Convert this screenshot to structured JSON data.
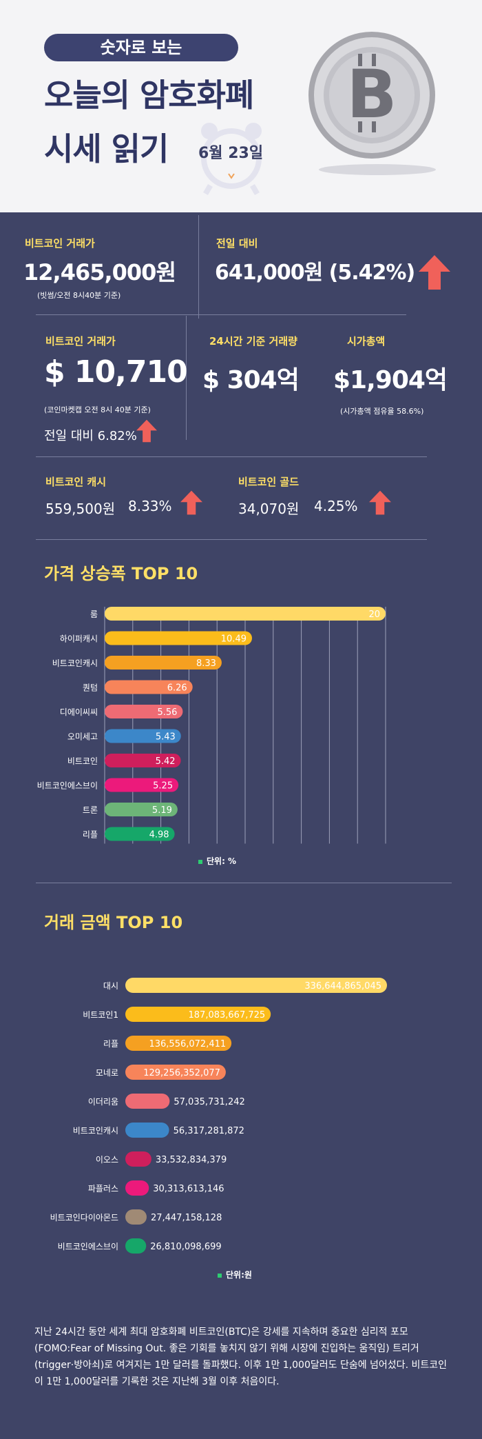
{
  "header": {
    "pill": "숫자로 보는",
    "title_line1": "오늘의 암호화폐",
    "title_line2": "시세 읽기",
    "date": "6월 23일"
  },
  "stats": {
    "btc_krw": {
      "label": "비트코인 거래가",
      "value": "12,465,000원",
      "note": "(빗썸/오전 8시40분 기준)"
    },
    "prev_day": {
      "label": "전일 대비",
      "value": "641,000원 (5.42%)"
    },
    "btc_usd": {
      "label": "비트코인 거래가",
      "value": "$ 10,710",
      "note": "(코인마켓캡 오전 8시 40분 기준)",
      "change": "전일 대비 6.82%"
    },
    "volume_24h": {
      "label": "24시간 기준 거래량",
      "value": "$ 304억"
    },
    "market_cap": {
      "label": "시가총액",
      "value": "$1,904억",
      "note": "(시가총액 점유율 58.6%)"
    },
    "bch": {
      "label": "비트코인 캐시",
      "value": "559,500원",
      "change": "8.33%"
    },
    "btg": {
      "label": "비트코인 골드",
      "value": "34,070원",
      "change": "4.25%"
    },
    "arrow_color": "#f0615a"
  },
  "chart_data": [
    {
      "type": "bar",
      "title": "가격 상승폭 TOP 10",
      "unit_label": "단위: %",
      "categories": [
        "룸",
        "하이퍼캐시",
        "비트코인캐시",
        "퀀텀",
        "디에이씨씨",
        "오미세고",
        "비트코인",
        "비트코인에스브이",
        "트론",
        "리플"
      ],
      "values": [
        20,
        10.49,
        8.33,
        6.26,
        5.56,
        5.43,
        5.42,
        5.25,
        5.19,
        4.98
      ],
      "value_labels": [
        "20",
        "10.49",
        "8.33",
        "6.26",
        "5.56",
        "5.43",
        "5.42",
        "5.25",
        "5.19",
        "4.98"
      ],
      "colors": [
        "#ffd966",
        "#fbbc1b",
        "#f5a021",
        "#f7845a",
        "#ee6b74",
        "#3c87c9",
        "#cf1f5c",
        "#ec1a7b",
        "#6db578",
        "#16a769"
      ],
      "xlim": [
        0,
        20
      ],
      "grid": true
    },
    {
      "type": "bar",
      "title": "거래 금액 TOP 10",
      "unit_label": "단위:원",
      "categories": [
        "대시",
        "비트코인1",
        "리플",
        "모네로",
        "이더리움",
        "비트코인캐시",
        "이오스",
        "파플러스",
        "비트코인다이아몬드",
        "비트코인에스브이"
      ],
      "values": [
        336644865045,
        187083667725,
        136556072411,
        129256352077,
        57035731242,
        56317281872,
        33532834379,
        30313613146,
        27447158128,
        26810098699
      ],
      "value_labels": [
        "336,644,865,045",
        "187,083,667,725",
        "136,556,072,411",
        "129,256,352,077",
        "57,035,731,242",
        "56,317,281,872",
        "33,532,834,379",
        "30,313,613,146",
        "27,447,158,128",
        "26,810,098,699"
      ],
      "colors": [
        "#ffd966",
        "#fbbc1b",
        "#f5a021",
        "#f7845a",
        "#ee6b74",
        "#3c87c9",
        "#cf1f5c",
        "#ec1a7b",
        "#a08a75",
        "#16a769"
      ],
      "xlim": [
        0,
        336644865045
      ],
      "grid": false
    }
  ],
  "footnote": "지난 24시간 동안 세계 최대 암호화폐 비트코인(BTC)은 강세를 지속하며 중요한 심리적 포모(FOMO:Fear of Missing Out. 좋은 기회를 놓치지 않기 위해 시장에 진입하는 움직임) 트리거(trigger·방아쇠)로 여겨지는 1만 달러를 돌파했다. 이후 1만 1,000달러도 단숨에 넘어섰다. 비트코인이 1만 1,000달러를 기록한 것은 지난해 3월 이후 처음이다."
}
